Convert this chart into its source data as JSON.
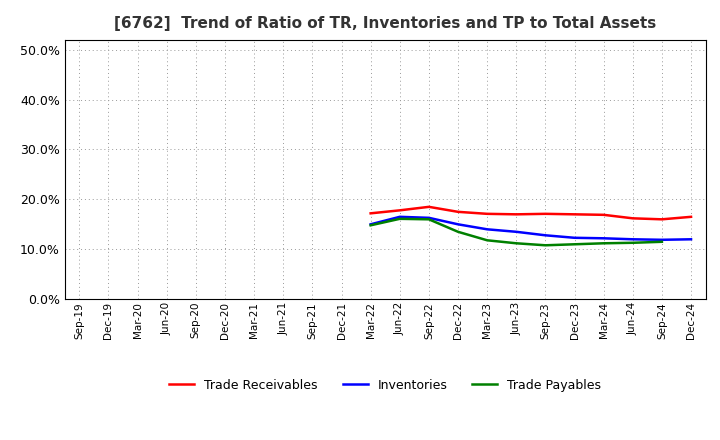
{
  "title": "[6762]  Trend of Ratio of TR, Inventories and TP to Total Assets",
  "title_fontsize": 11,
  "title_color": "#333333",
  "background_color": "#ffffff",
  "plot_bg_color": "#ffffff",
  "grid_color": "#999999",
  "ylim": [
    0.0,
    0.52
  ],
  "yticks": [
    0.0,
    0.1,
    0.2,
    0.3,
    0.4,
    0.5
  ],
  "x_labels": [
    "Sep-19",
    "Dec-19",
    "Mar-20",
    "Jun-20",
    "Sep-20",
    "Dec-20",
    "Mar-21",
    "Jun-21",
    "Sep-21",
    "Dec-21",
    "Mar-22",
    "Jun-22",
    "Sep-22",
    "Dec-22",
    "Mar-23",
    "Jun-23",
    "Sep-23",
    "Dec-23",
    "Mar-24",
    "Jun-24",
    "Sep-24",
    "Dec-24"
  ],
  "trade_receivables": [
    null,
    null,
    null,
    null,
    null,
    null,
    null,
    null,
    null,
    null,
    0.172,
    0.178,
    0.185,
    0.175,
    0.171,
    0.17,
    0.171,
    0.17,
    0.169,
    0.162,
    0.16,
    0.165
  ],
  "inventories": [
    null,
    null,
    null,
    null,
    null,
    null,
    null,
    null,
    null,
    null,
    0.15,
    0.165,
    0.163,
    0.15,
    0.14,
    0.135,
    0.128,
    0.123,
    0.122,
    0.12,
    0.119,
    0.12
  ],
  "trade_payables": [
    null,
    null,
    null,
    null,
    null,
    null,
    null,
    null,
    null,
    null,
    0.148,
    0.161,
    0.16,
    0.135,
    0.118,
    0.112,
    0.108,
    0.11,
    0.112,
    0.113,
    0.115,
    null
  ],
  "tr_color": "#ff0000",
  "inv_color": "#0000ff",
  "tp_color": "#008000",
  "legend_labels": [
    "Trade Receivables",
    "Inventories",
    "Trade Payables"
  ],
  "line_width": 1.8
}
